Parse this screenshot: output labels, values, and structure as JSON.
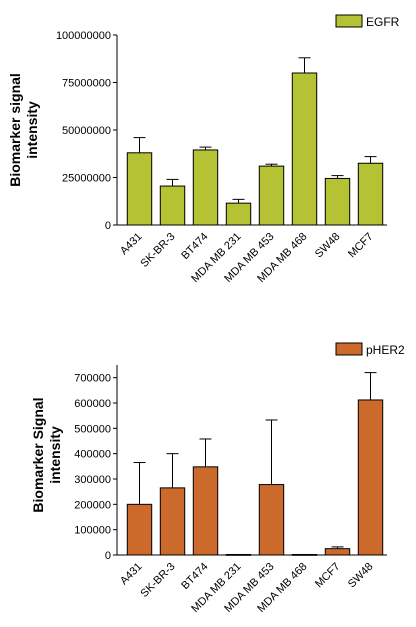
{
  "chart_data": [
    {
      "type": "bar",
      "title": "",
      "ylabel_lines": [
        "Biomarker signal",
        "intensity"
      ],
      "legend": "EGFR",
      "legend_position": "top-right",
      "bar_color": "#b5c234",
      "categories": [
        "A431",
        "SK-BR-3",
        "BT474",
        "MDA MB 231",
        "MDA MB 453",
        "MDA MB 468",
        "SW48",
        "MCF7"
      ],
      "values": [
        38000000,
        20500000,
        39500000,
        11500000,
        31000000,
        80000000,
        24500000,
        32500000
      ],
      "errors": [
        8000000,
        3500000,
        1500000,
        2000000,
        1000000,
        8000000,
        1500000,
        3500000
      ],
      "ylim": [
        0,
        100000000
      ],
      "yticks": [
        0,
        25000000,
        50000000,
        75000000,
        100000000
      ],
      "ytick_labels": [
        "0",
        "25000000",
        "50000000",
        "75000000",
        "100000000"
      ],
      "grid": false
    },
    {
      "type": "bar",
      "title": "",
      "ylabel_lines": [
        "Biomarker  Signal",
        "intensity"
      ],
      "legend": "pHER2",
      "legend_position": "top-right",
      "bar_color": "#cc6a2c",
      "categories": [
        "A431",
        "SK-BR-3",
        "BT474",
        "MDA MB 231",
        "MDA MB 453",
        "MDA MB 468",
        "MCF7",
        "SW48"
      ],
      "values": [
        200000,
        265000,
        348000,
        2000,
        278000,
        2000,
        25000,
        612000
      ],
      "errors": [
        165000,
        135000,
        110000,
        0,
        255000,
        0,
        7000,
        108000
      ],
      "ylim": [
        0,
        750000
      ],
      "yticks": [
        0,
        100000,
        200000,
        300000,
        400000,
        500000,
        600000,
        700000
      ],
      "ytick_labels": [
        "0",
        "100000",
        "200000",
        "300000",
        "400000",
        "500000",
        "600000",
        "700000"
      ],
      "grid": false
    }
  ]
}
